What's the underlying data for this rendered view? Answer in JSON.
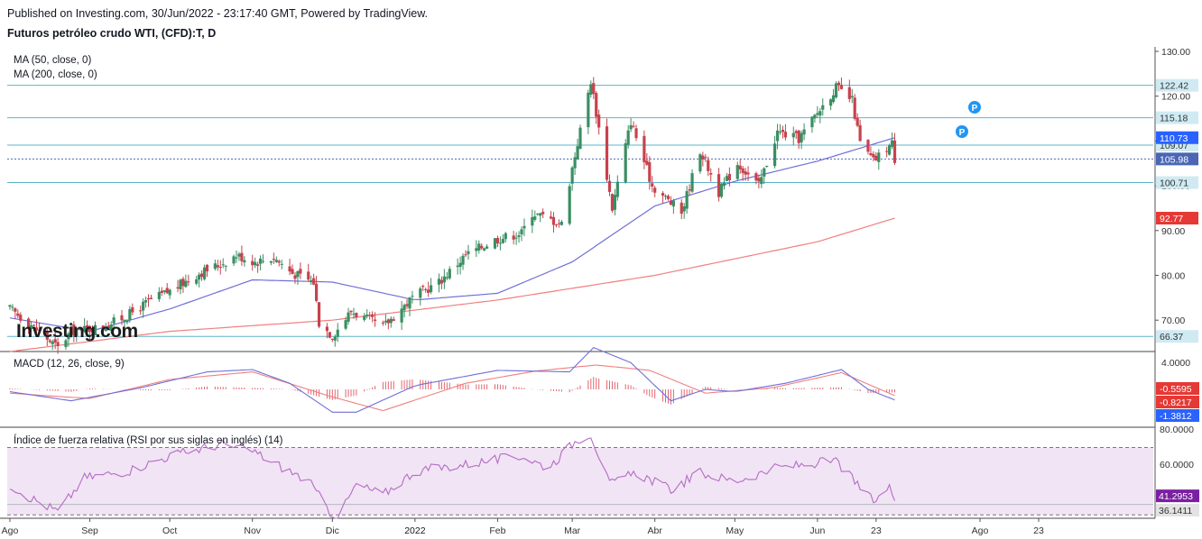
{
  "header": {
    "published": "Published on Investing.com, 30/Jun/2022 - 23:17:40 GMT, Powered by TradingView.",
    "title": "Futuros petróleo crudo WTI, (CFD):T, D"
  },
  "legend": {
    "ma50": "MA (50, close, 0)",
    "ma200": "MA (200, close, 0)",
    "macd": "MACD (12, 26, close, 9)",
    "rsi": "Índice de fuerza relativa (RSI por sus siglas en inglés) (14)"
  },
  "watermark": "Investing.com",
  "colors": {
    "up": "#3a8f63",
    "down": "#c8424d",
    "ma50": "#6f6fd8",
    "ma200": "#f07f7f",
    "hline": "#5fb4cc",
    "rsi_line": "#b46cc6",
    "rsi_band": "#f1e4f4",
    "macd_line": "#6f6fd8",
    "signal_line": "#f07f7f",
    "hist": "#e1646e"
  },
  "chart_data": [
    {
      "type": "candlestick",
      "name": "price",
      "x_labels": [
        "Ago",
        "Sep",
        "Oct",
        "Nov",
        "Dic",
        "2022",
        "Feb",
        "Mar",
        "Abr",
        "May",
        "Jun",
        "23",
        "Ago",
        "23"
      ],
      "ylim": [
        63,
        131
      ],
      "y_ticks": [
        70,
        80,
        90,
        100,
        110,
        120,
        130
      ],
      "y_tick_labels": [
        "70.00",
        "80.00",
        "90.00",
        "100.00",
        "110.00",
        "120.00",
        "130.00"
      ],
      "horizontal_levels": [
        122.42,
        115.18,
        109.07,
        100.71,
        66.37
      ],
      "price_tags": [
        {
          "label": "110.73",
          "value": 110.73,
          "color": "#2962ff"
        },
        {
          "label": "105.98",
          "value": 105.98,
          "color": "#4a66b5"
        },
        {
          "label": "92.77",
          "value": 92.77,
          "color": "#e53935"
        }
      ],
      "anchors": [
        [
          "2021-08-02",
          72.5
        ],
        [
          "2021-08-10",
          69.0
        ],
        [
          "2021-08-20",
          63.8
        ],
        [
          "2021-08-25",
          67.5
        ],
        [
          "2021-09-06",
          68.5
        ],
        [
          "2021-09-15",
          71.0
        ],
        [
          "2021-09-24",
          74.5
        ],
        [
          "2021-10-01",
          76.5
        ],
        [
          "2021-10-12",
          80.5
        ],
        [
          "2021-10-20",
          82.5
        ],
        [
          "2021-10-26",
          84.5
        ],
        [
          "2021-11-02",
          83.0
        ],
        [
          "2021-11-09",
          84.0
        ],
        [
          "2021-11-16",
          80.5
        ],
        [
          "2021-11-24",
          78.5
        ],
        [
          "2021-11-26",
          69.5
        ],
        [
          "2021-12-01",
          66.5
        ],
        [
          "2021-12-08",
          72.0
        ],
        [
          "2021-12-20",
          68.5
        ],
        [
          "2021-12-31",
          75.0
        ],
        [
          "2022-01-10",
          78.5
        ],
        [
          "2022-01-20",
          84.5
        ],
        [
          "2022-01-31",
          88.0
        ],
        [
          "2022-02-10",
          89.5
        ],
        [
          "2022-02-14",
          94.0
        ],
        [
          "2022-02-25",
          91.5
        ],
        [
          "2022-03-01",
          104.0
        ],
        [
          "2022-03-08",
          123.5
        ],
        [
          "2022-03-16",
          95.0
        ],
        [
          "2022-03-23",
          114.5
        ],
        [
          "2022-03-31",
          100.0
        ],
        [
          "2022-04-11",
          94.0
        ],
        [
          "2022-04-18",
          108.0
        ],
        [
          "2022-04-25",
          98.5
        ],
        [
          "2022-05-02",
          105.0
        ],
        [
          "2022-05-10",
          100.0
        ],
        [
          "2022-05-17",
          112.0
        ],
        [
          "2022-05-25",
          110.5
        ],
        [
          "2022-06-08",
          122.0
        ],
        [
          "2022-06-14",
          119.0
        ],
        [
          "2022-06-17",
          109.5
        ],
        [
          "2022-06-22",
          105.5
        ],
        [
          "2022-06-29",
          109.5
        ],
        [
          "2022-06-30",
          105.98
        ]
      ],
      "ma50_anchors": [
        [
          "2021-08-02",
          70.5
        ],
        [
          "2021-09-01",
          67.5
        ],
        [
          "2021-10-01",
          72.5
        ],
        [
          "2021-11-01",
          79.0
        ],
        [
          "2021-12-01",
          78.5
        ],
        [
          "2022-01-01",
          74.5
        ],
        [
          "2022-02-01",
          76.0
        ],
        [
          "2022-03-01",
          83.0
        ],
        [
          "2022-04-01",
          95.5
        ],
        [
          "2022-05-01",
          101.0
        ],
        [
          "2022-06-01",
          105.5
        ],
        [
          "2022-06-30",
          110.73
        ]
      ],
      "ma200_anchors": [
        [
          "2021-08-02",
          63.0
        ],
        [
          "2021-10-01",
          67.5
        ],
        [
          "2021-12-01",
          70.0
        ],
        [
          "2022-02-01",
          74.5
        ],
        [
          "2022-04-01",
          80.0
        ],
        [
          "2022-06-01",
          87.5
        ],
        [
          "2022-06-30",
          92.77
        ]
      ]
    },
    {
      "type": "macd",
      "name": "MACD (12, 26, close, 9)",
      "ylim": [
        -4.5,
        4.5
      ],
      "y_tick_labels": [
        "4.0000"
      ],
      "value_tags": [
        {
          "label": "-0.5595",
          "value": -0.5595,
          "color": "#e53935"
        },
        {
          "label": "-0.8217",
          "value": -0.8217,
          "color": "#e53935"
        },
        {
          "label": "-1.3812",
          "value": -1.3812,
          "color": "#2962ff"
        }
      ],
      "macd_anchors": [
        [
          "2021-08-02",
          -0.3
        ],
        [
          "2021-08-25",
          -1.5
        ],
        [
          "2021-09-20",
          0.2
        ],
        [
          "2021-10-15",
          2.3
        ],
        [
          "2021-11-01",
          2.6
        ],
        [
          "2021-11-15",
          0.8
        ],
        [
          "2021-12-01",
          -3.0
        ],
        [
          "2021-12-10",
          -3.0
        ],
        [
          "2022-01-01",
          0.5
        ],
        [
          "2022-02-01",
          2.5
        ],
        [
          "2022-02-28",
          2.3
        ],
        [
          "2022-03-09",
          5.5
        ],
        [
          "2022-03-23",
          3.5
        ],
        [
          "2022-04-07",
          -1.5
        ],
        [
          "2022-04-20",
          0.0
        ],
        [
          "2022-05-01",
          -0.3
        ],
        [
          "2022-05-20",
          0.8
        ],
        [
          "2022-06-10",
          2.6
        ],
        [
          "2022-06-20",
          0.0
        ],
        [
          "2022-06-30",
          -1.3812
        ]
      ],
      "signal_anchors": [
        [
          "2021-08-02",
          -0.5
        ],
        [
          "2021-09-01",
          -1.2
        ],
        [
          "2021-10-01",
          1.3
        ],
        [
          "2021-11-01",
          2.3
        ],
        [
          "2021-12-01",
          -1.0
        ],
        [
          "2021-12-20",
          -2.8
        ],
        [
          "2022-01-20",
          0.8
        ],
        [
          "2022-02-15",
          2.4
        ],
        [
          "2022-03-10",
          3.2
        ],
        [
          "2022-03-30",
          2.5
        ],
        [
          "2022-04-20",
          -0.5
        ],
        [
          "2022-05-15",
          0.2
        ],
        [
          "2022-06-10",
          2.2
        ],
        [
          "2022-06-30",
          -0.8217
        ]
      ]
    },
    {
      "type": "rsi",
      "name": "RSI (14)",
      "ylim": [
        28,
        82
      ],
      "upper_band": 70,
      "lower_band": 30,
      "y_tick_labels": [
        "80.0000",
        "60.0000"
      ],
      "value_tags": [
        {
          "label": "41.2953",
          "value": 41.2953,
          "color": "#7b1fa2"
        },
        {
          "label": "36.1411",
          "value": 36.1411,
          "color": "#e3e3e3"
        }
      ],
      "anchors": [
        [
          "2021-08-02",
          48.0
        ],
        [
          "2021-08-10",
          40.0
        ],
        [
          "2021-08-20",
          32.0
        ],
        [
          "2021-08-30",
          52.0
        ],
        [
          "2021-09-15",
          56.0
        ],
        [
          "2021-10-01",
          65.0
        ],
        [
          "2021-10-20",
          72.0
        ],
        [
          "2021-11-01",
          68.0
        ],
        [
          "2021-11-10",
          60.0
        ],
        [
          "2021-11-22",
          50.0
        ],
        [
          "2021-11-30",
          32.0
        ],
        [
          "2021-12-03",
          28.0
        ],
        [
          "2021-12-10",
          48.0
        ],
        [
          "2021-12-20",
          42.0
        ],
        [
          "2022-01-01",
          56.0
        ],
        [
          "2022-01-20",
          60.0
        ],
        [
          "2022-02-10",
          65.0
        ],
        [
          "2022-02-20",
          58.0
        ],
        [
          "2022-03-03",
          75.0
        ],
        [
          "2022-03-08",
          78.0
        ],
        [
          "2022-03-15",
          48.0
        ],
        [
          "2022-03-25",
          55.0
        ],
        [
          "2022-04-07",
          45.0
        ],
        [
          "2022-04-18",
          55.0
        ],
        [
          "2022-05-01",
          50.0
        ],
        [
          "2022-05-17",
          58.0
        ],
        [
          "2022-06-08",
          62.0
        ],
        [
          "2022-06-17",
          46.0
        ],
        [
          "2022-06-22",
          38.0
        ],
        [
          "2022-06-28",
          46.0
        ],
        [
          "2022-06-30",
          41.2953
        ]
      ]
    }
  ]
}
